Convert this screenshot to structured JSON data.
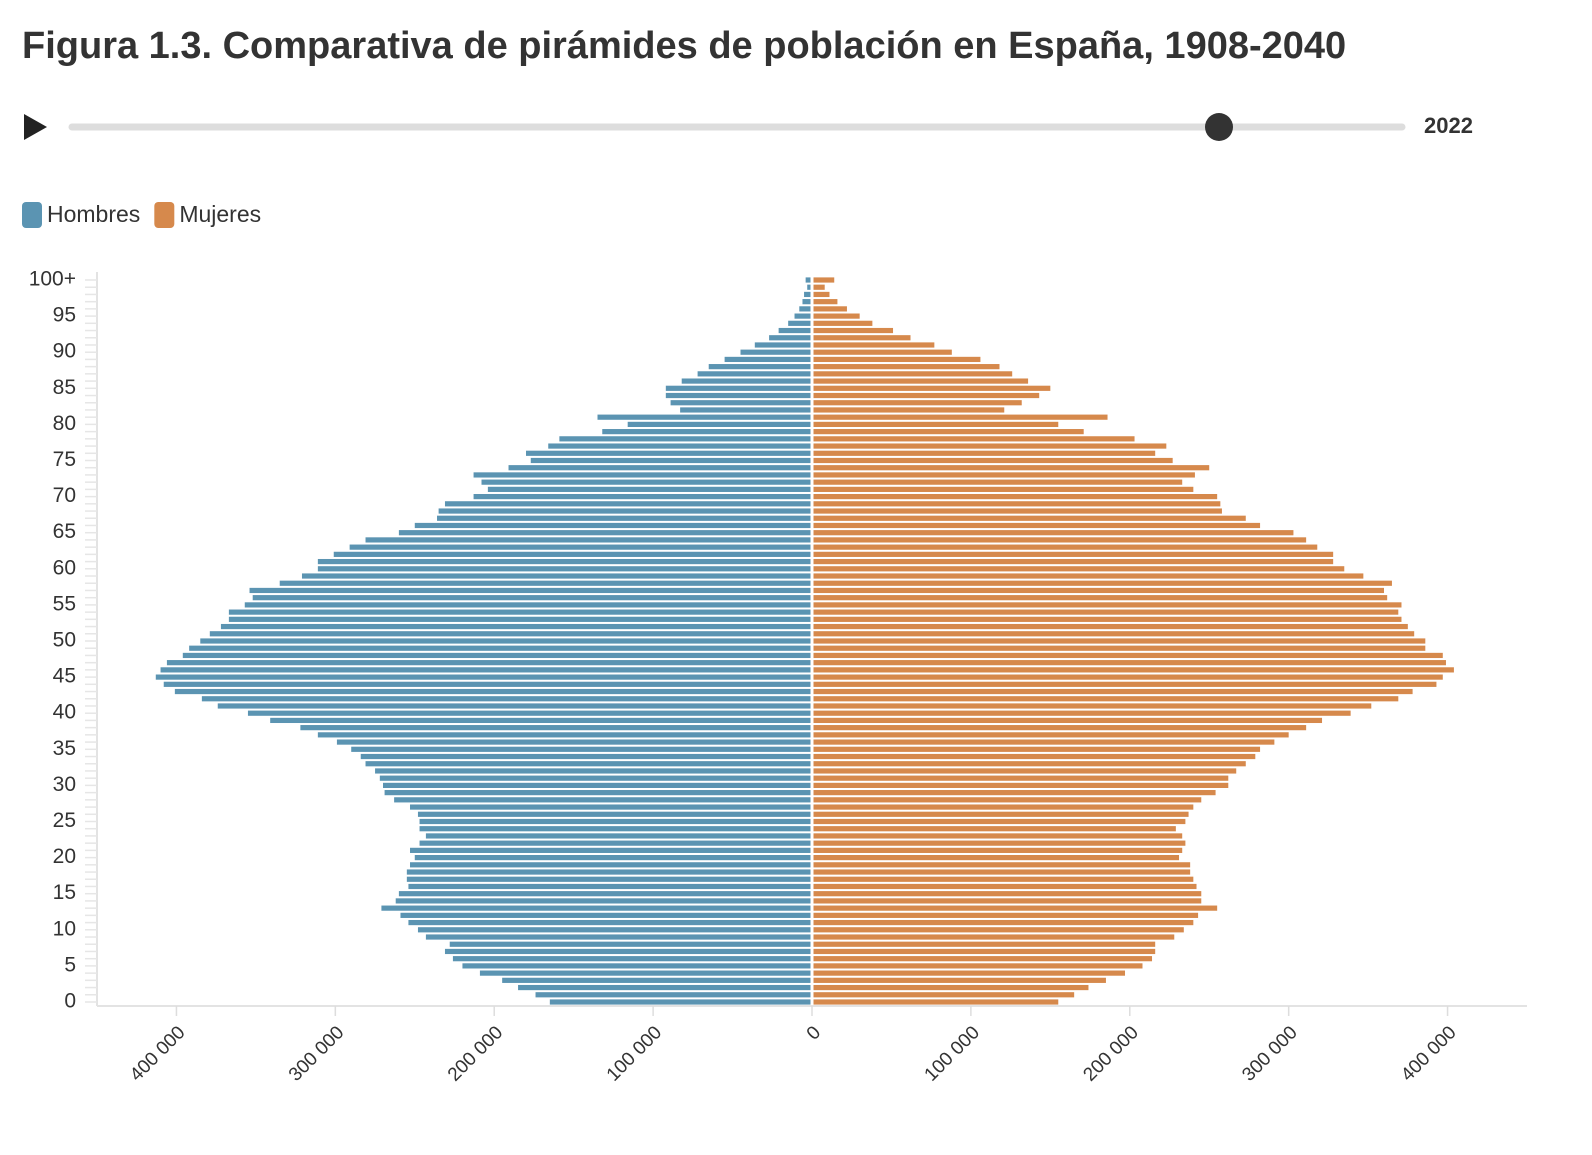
{
  "chart_data": {
    "type": "population-pyramid",
    "title": "Figura 1.3. Comparativa de pirámides de población en España, 1908-2040",
    "year": "2022",
    "categories": [
      "0",
      null,
      null,
      null,
      null,
      "5",
      null,
      null,
      null,
      null,
      "10",
      null,
      null,
      null,
      null,
      "15",
      null,
      null,
      null,
      null,
      "20",
      null,
      null,
      null,
      null,
      "25",
      null,
      null,
      null,
      null,
      "30",
      null,
      null,
      null,
      null,
      "35",
      null,
      null,
      null,
      null,
      "40",
      null,
      null,
      null,
      null,
      "45",
      null,
      null,
      null,
      null,
      "50",
      null,
      null,
      null,
      null,
      "55",
      null,
      null,
      null,
      null,
      "60",
      null,
      null,
      null,
      null,
      "65",
      null,
      null,
      null,
      null,
      "70",
      null,
      null,
      null,
      null,
      "75",
      null,
      null,
      null,
      null,
      "80",
      null,
      null,
      null,
      null,
      "85",
      null,
      null,
      null,
      null,
      "90",
      null,
      null,
      null,
      null,
      "95",
      null,
      null,
      null,
      null,
      "100+"
    ],
    "series": [
      {
        "name": "Hombres",
        "color": "#5b94b2",
        "side": "left",
        "values": [
          165000,
          174000,
          185000,
          195000,
          209000,
          220000,
          226000,
          231000,
          228000,
          243000,
          248000,
          254000,
          259000,
          271000,
          262000,
          260000,
          254000,
          255000,
          255000,
          253000,
          250000,
          253000,
          247000,
          243000,
          247000,
          247000,
          248000,
          253000,
          263000,
          269000,
          270000,
          272000,
          275000,
          281000,
          284000,
          290000,
          299000,
          311000,
          322000,
          341000,
          355000,
          374000,
          384000,
          401000,
          408000,
          413000,
          410000,
          406000,
          396000,
          392000,
          385000,
          379000,
          372000,
          367000,
          367000,
          357000,
          352000,
          354000,
          335000,
          321000,
          311000,
          311000,
          301000,
          291000,
          281000,
          260000,
          250000,
          236000,
          235000,
          231000,
          213000,
          204000,
          208000,
          213000,
          191000,
          177000,
          180000,
          166000,
          159000,
          132000,
          116000,
          135000,
          83000,
          89000,
          92000,
          92000,
          82000,
          72000,
          65000,
          55000,
          45000,
          36000,
          27000,
          21000,
          15000,
          11000,
          8000,
          6000,
          5000,
          3000,
          4000
        ]
      },
      {
        "name": "Mujeres",
        "color": "#d6894c",
        "side": "right",
        "values": [
          155000,
          165000,
          174000,
          185000,
          197000,
          208000,
          214000,
          216000,
          216000,
          228000,
          234000,
          240000,
          243000,
          255000,
          245000,
          245000,
          242000,
          240000,
          238000,
          238000,
          231000,
          233000,
          235000,
          233000,
          229000,
          235000,
          237000,
          240000,
          245000,
          254000,
          262000,
          262000,
          267000,
          273000,
          279000,
          282000,
          291000,
          300000,
          311000,
          321000,
          339000,
          352000,
          369000,
          378000,
          393000,
          397000,
          404000,
          399000,
          397000,
          386000,
          386000,
          379000,
          375000,
          371000,
          369000,
          371000,
          362000,
          360000,
          365000,
          347000,
          335000,
          328000,
          328000,
          318000,
          311000,
          303000,
          282000,
          273000,
          258000,
          257000,
          255000,
          240000,
          233000,
          241000,
          250000,
          227000,
          216000,
          223000,
          203000,
          171000,
          155000,
          186000,
          121000,
          132000,
          143000,
          150000,
          136000,
          126000,
          118000,
          106000,
          88000,
          77000,
          62000,
          51000,
          38000,
          30000,
          22000,
          16000,
          11000,
          8000,
          14000
        ]
      }
    ],
    "xlim": [
      -450000,
      450000
    ],
    "xticks": [
      {
        "value": -400000,
        "label": "400 000"
      },
      {
        "value": -300000,
        "label": "300 000"
      },
      {
        "value": -200000,
        "label": "200 000"
      },
      {
        "value": -100000,
        "label": "100 000"
      },
      0,
      {
        "value": 100000,
        "label": "100 000"
      },
      {
        "value": 200000,
        "label": "200 000"
      },
      {
        "value": 300000,
        "label": "300 000"
      },
      {
        "value": 400000,
        "label": "400 000"
      }
    ]
  }
}
